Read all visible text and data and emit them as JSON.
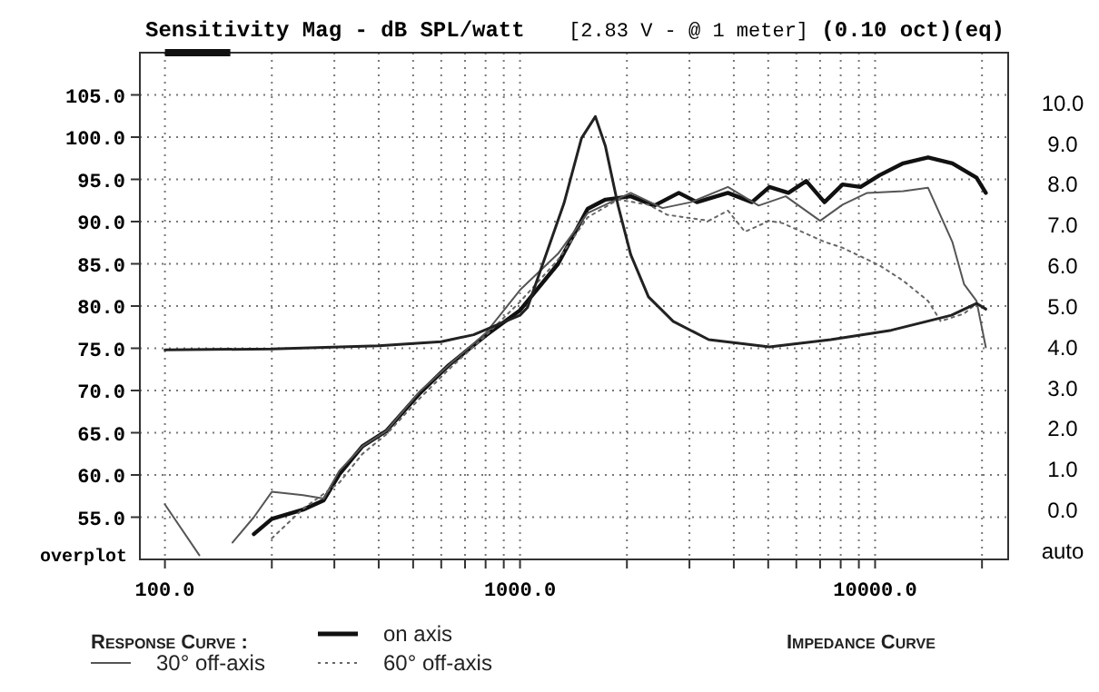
{
  "chart_data": {
    "type": "line",
    "title": "Sensitivity Mag - dB SPL/watt",
    "subtitle": "[2.83 V - @ 1 meter]",
    "annotations": [
      "(0.10 oct)(eq)",
      "overplot",
      "Impedance Curve"
    ],
    "legend_title": "Response Curve :",
    "log": "x",
    "grid": true,
    "legend": "bottom",
    "xlim": [
      85,
      23700
    ],
    "xticks": [
      {
        "value": 100,
        "label": "100.0"
      },
      {
        "value": 200,
        "label": null
      },
      {
        "value": 300,
        "label": null
      },
      {
        "value": 400,
        "label": null
      },
      {
        "value": 500,
        "label": null
      },
      {
        "value": 600,
        "label": null
      },
      {
        "value": 700,
        "label": null
      },
      {
        "value": 800,
        "label": null
      },
      {
        "value": 900,
        "label": null
      },
      {
        "value": 1000,
        "label": "1000.0"
      },
      {
        "value": 2000,
        "label": null
      },
      {
        "value": 3000,
        "label": null
      },
      {
        "value": 4000,
        "label": null
      },
      {
        "value": 5000,
        "label": null
      },
      {
        "value": 6000,
        "label": null
      },
      {
        "value": 7000,
        "label": null
      },
      {
        "value": 8000,
        "label": null
      },
      {
        "value": 9000,
        "label": null
      },
      {
        "value": 10000,
        "label": "10000.0"
      },
      {
        "value": 20000,
        "label": null
      }
    ],
    "ylim": [
      50,
      110
    ],
    "yticks": [
      {
        "value": 55,
        "label": "55.0"
      },
      {
        "value": 60,
        "label": "60.0"
      },
      {
        "value": 65,
        "label": "65.0"
      },
      {
        "value": 70,
        "label": "70.0"
      },
      {
        "value": 75,
        "label": "75.0"
      },
      {
        "value": 80,
        "label": "80.0"
      },
      {
        "value": 85,
        "label": "85.0"
      },
      {
        "value": 90,
        "label": "90.0"
      },
      {
        "value": 95,
        "label": "95.0"
      },
      {
        "value": 100,
        "label": "100.0"
      },
      {
        "value": 105,
        "label": "105.0"
      }
    ],
    "y2lim": [
      -1.25,
      11.2
    ],
    "y2ticks": [
      {
        "value": -1,
        "label": "auto"
      },
      {
        "value": 0,
        "label": "0.0"
      },
      {
        "value": 1,
        "label": "1.0"
      },
      {
        "value": 2,
        "label": "2.0"
      },
      {
        "value": 3,
        "label": "3.0"
      },
      {
        "value": 4,
        "label": "4.0"
      },
      {
        "value": 5,
        "label": "5.0"
      },
      {
        "value": 6,
        "label": "6.0"
      },
      {
        "value": 7,
        "label": "7.0"
      },
      {
        "value": 8,
        "label": "8.0"
      },
      {
        "value": 9,
        "label": "9.0"
      },
      {
        "value": 10,
        "label": "10.0"
      }
    ],
    "series": [
      {
        "name": "on axis",
        "color": "#111111",
        "line_style": "solid",
        "x": [
          178,
          200,
          245,
          280,
          310,
          360,
          420,
          520,
          630,
          800,
          1000,
          1280,
          1550,
          1740,
          2050,
          2390,
          2800,
          3150,
          3850,
          4500,
          5040,
          5700,
          6400,
          7200,
          8100,
          9100,
          10300,
          12000,
          14100,
          16500,
          19300,
          20500
        ],
        "values": [
          53,
          54.8,
          55.9,
          57,
          60.1,
          63.4,
          65.2,
          69.6,
          73,
          76.5,
          79.5,
          85,
          91.5,
          92.6,
          93,
          91.9,
          93.4,
          92.3,
          93.4,
          92.3,
          94.1,
          93.4,
          94.8,
          92.3,
          94.4,
          94.1,
          95.5,
          96.9,
          97.6,
          96.9,
          95.2,
          93.4
        ]
      },
      {
        "name": "30° off-axis",
        "color": "#555555",
        "line_style": "solid",
        "x": [
          100,
          125,
          150,
          155,
          178,
          200,
          245,
          280,
          310,
          360,
          420,
          520,
          630,
          800,
          1000,
          1280,
          1550,
          2050,
          2520,
          3030,
          3850,
          4700,
          5600,
          7000,
          8100,
          9500,
          12000,
          14100,
          16500,
          17800,
          19300,
          20500
        ],
        "values": [
          56.5,
          50.5,
          null,
          52,
          55,
          58,
          57.6,
          57.2,
          60.5,
          63.4,
          65.2,
          69.8,
          73,
          76.8,
          81.9,
          86.2,
          91,
          93.4,
          91.6,
          92.3,
          94.1,
          91.9,
          93,
          90.1,
          92,
          93.4,
          93.6,
          94,
          87.6,
          82.6,
          80.6,
          75.1
        ]
      },
      {
        "name": "60° off-axis",
        "color": "#666666",
        "line_style": "dotted",
        "x": [
          200,
          245,
          310,
          360,
          420,
          520,
          630,
          800,
          1000,
          1280,
          1550,
          1890,
          2300,
          2600,
          3400,
          3850,
          4300,
          5040,
          5500,
          7200,
          8100,
          10300,
          12000,
          14100,
          15300,
          17800,
          19300,
          20500
        ],
        "values": [
          52.5,
          56,
          59.1,
          62.5,
          64.8,
          69,
          72.5,
          76.5,
          80.5,
          85.5,
          90.5,
          92.6,
          92,
          90.8,
          90.1,
          91.3,
          88.8,
          90.1,
          89.8,
          87.6,
          86.9,
          84.8,
          83,
          80.6,
          78.2,
          79.1,
          80.3,
          79.7
        ]
      },
      {
        "color": "#222222",
        "axis": "y2",
        "line_style": "solid",
        "x": [
          100,
          200,
          400,
          600,
          740,
          1000,
          1050,
          1330,
          1490,
          1630,
          1740,
          1890,
          2050,
          2300,
          2700,
          3400,
          5040,
          7500,
          11100,
          16400,
          19300,
          20500
        ],
        "values": [
          3.9,
          3.92,
          4,
          4.1,
          4.27,
          4.75,
          4.94,
          7.5,
          9.1,
          9.63,
          8.9,
          7.43,
          6.24,
          5.2,
          4.6,
          4.15,
          3.97,
          4.15,
          4.38,
          4.75,
          5.04,
          4.9
        ]
      }
    ]
  }
}
